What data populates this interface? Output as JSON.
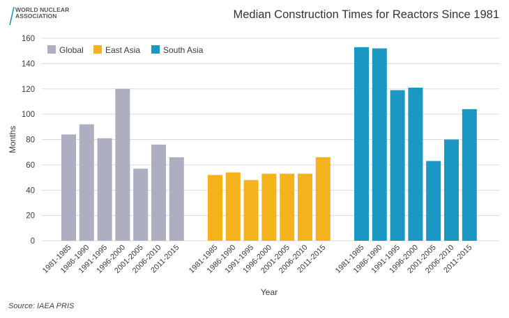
{
  "logo": {
    "line1": "WORLD NUCLEAR",
    "line2": "ASSOCIATION"
  },
  "source": "Source: IAEA PRIS",
  "colors": {
    "Global": "#adafc1",
    "East Asia": "#f4b31c",
    "South Asia": "#1a97c3",
    "grid": "#d9d9d9"
  },
  "chart_data": {
    "type": "bar",
    "title": "Median Construction Times for Reactors Since 1981",
    "xlabel": "Year",
    "ylabel": "Months",
    "ylim": [
      0,
      160
    ],
    "yticks": [
      0,
      20,
      40,
      60,
      80,
      100,
      120,
      140,
      160
    ],
    "grid": true,
    "legend": "top-left",
    "categories": [
      "1981-1985",
      "1986-1990",
      "1991-1995",
      "1996-2000",
      "2001-2005",
      "2006-2010",
      "2011-2015"
    ],
    "series": [
      {
        "name": "Global",
        "values": [
          84,
          92,
          81,
          120,
          57,
          76,
          66
        ]
      },
      {
        "name": "East Asia",
        "values": [
          52,
          54,
          48,
          53,
          53,
          53,
          66
        ]
      },
      {
        "name": "South Asia",
        "values": [
          153,
          152,
          119,
          121,
          63,
          80,
          104
        ]
      }
    ]
  }
}
